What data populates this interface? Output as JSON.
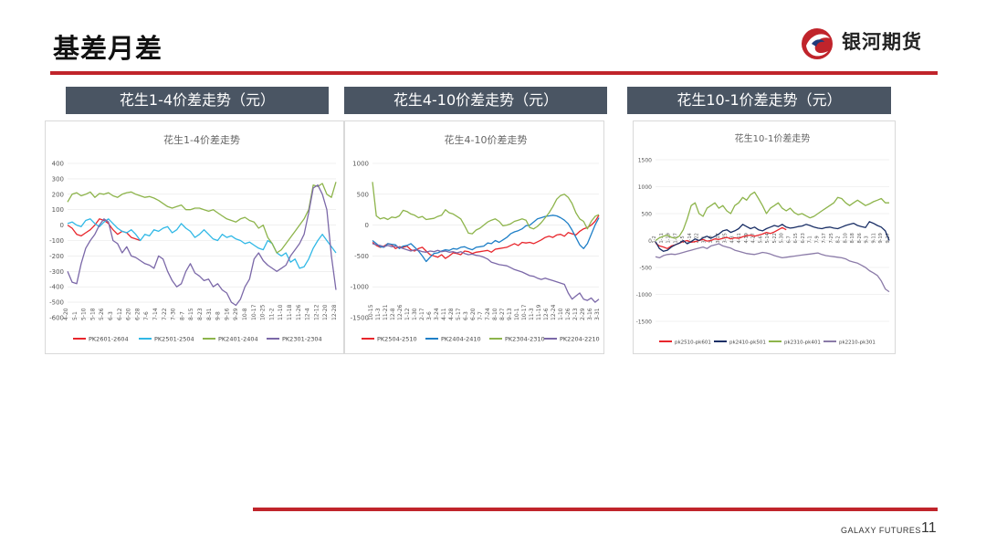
{
  "header": {
    "title": "基差月差",
    "brand_name": "银河期货"
  },
  "footer": {
    "brand": "GALAXY FUTURES",
    "page_number": "11"
  },
  "panels": [
    {
      "header": "花生1-4价差走势（元）"
    },
    {
      "header": "花生4-10价差走势（元）"
    },
    {
      "header": "花生10-1价差走势（元）"
    }
  ],
  "colors": {
    "accent_red": "#c0242b",
    "header_bg": "#4a5563"
  },
  "chart_data": [
    {
      "type": "line",
      "title": "花生1-4价差走势",
      "ylim": [
        -600,
        400
      ],
      "yticks": [
        400,
        300,
        200,
        100,
        0,
        -100,
        -200,
        -300,
        -400,
        -500,
        -600
      ],
      "x_tick_labels": [
        "4-20",
        "5-1",
        "5-10",
        "5-18",
        "5-26",
        "6-3",
        "6-12",
        "6-20",
        "6-28",
        "7-6",
        "7-14",
        "7-22",
        "7-30",
        "8-7",
        "8-15",
        "8-23",
        "8-31",
        "9-8",
        "9-16",
        "9-29",
        "10-8",
        "10-17",
        "10-25",
        "11-2",
        "11-10",
        "11-18",
        "11-26",
        "12-4",
        "12-12",
        "12-20",
        "12-28"
      ],
      "n": 60,
      "series": [
        {
          "name": "PK2601-2604",
          "color": "#e8262c",
          "range": [
            0,
            16
          ],
          "values": [
            0,
            -20,
            -60,
            -70,
            -50,
            -30,
            0,
            40,
            30,
            10,
            -30,
            -60,
            -40,
            -50,
            -80,
            -90,
            -100
          ]
        },
        {
          "name": "PK2501-2504",
          "color": "#30b8e6",
          "range": [
            0,
            59
          ],
          "values": [
            10,
            20,
            0,
            -10,
            30,
            40,
            10,
            -10,
            20,
            40,
            10,
            -20,
            -40,
            -50,
            -30,
            -60,
            -100,
            -60,
            -70,
            -30,
            -40,
            -20,
            -10,
            -50,
            -30,
            10,
            -20,
            -40,
            -80,
            -60,
            -30,
            -60,
            -90,
            -100,
            -60,
            -80,
            -70,
            -90,
            -100,
            -120,
            -110,
            -130,
            -150,
            -160,
            -100,
            -120,
            -180,
            -200,
            -180,
            -240,
            -220,
            -280,
            -270,
            -220,
            -150,
            -100,
            -60,
            -100,
            -140,
            -180
          ]
        },
        {
          "name": "PK2401-2404",
          "color": "#8db44b",
          "range": [
            0,
            59
          ],
          "values": [
            150,
            200,
            210,
            190,
            200,
            215,
            180,
            205,
            200,
            210,
            190,
            180,
            200,
            210,
            215,
            200,
            190,
            180,
            185,
            175,
            160,
            140,
            120,
            110,
            120,
            130,
            100,
            100,
            110,
            110,
            100,
            90,
            100,
            80,
            60,
            40,
            30,
            20,
            40,
            50,
            30,
            20,
            -20,
            0,
            -80,
            -120,
            -180,
            -160,
            -120,
            -80,
            -40,
            0,
            40,
            100,
            260,
            250,
            270,
            200,
            180,
            280
          ]
        },
        {
          "name": "PK2301-2304",
          "color": "#7b68a8",
          "range": [
            0,
            59
          ],
          "values": [
            -300,
            -370,
            -380,
            -250,
            -150,
            -100,
            -60,
            0,
            40,
            20,
            -100,
            -120,
            -180,
            -140,
            -200,
            -210,
            -230,
            -250,
            -260,
            -280,
            -200,
            -220,
            -300,
            -360,
            -400,
            -380,
            -300,
            -250,
            -310,
            -330,
            -360,
            -350,
            -400,
            -380,
            -420,
            -440,
            -500,
            -520,
            -480,
            -400,
            -350,
            -220,
            -180,
            -230,
            -260,
            -280,
            -300,
            -280,
            -260,
            -200,
            -160,
            -120,
            -60,
            80,
            240,
            260,
            200,
            100,
            -200,
            -420
          ]
        }
      ]
    },
    {
      "type": "line",
      "title": "花生4-10价差走势",
      "ylim": [
        -1500,
        1000
      ],
      "yticks": [
        1000,
        500,
        0,
        -500,
        -1000,
        -1500
      ],
      "x_tick_labels": [
        "10-15",
        "11-3",
        "11-21",
        "12-8",
        "12-26",
        "1-12",
        "1-30",
        "2-17",
        "3-6",
        "3-24",
        "4-11",
        "4-28",
        "5-17",
        "6-3",
        "6-20",
        "7-7",
        "7-24",
        "8-10",
        "8-27",
        "9-13",
        "10-1",
        "10-17",
        "11-3",
        "11-19",
        "12-6",
        "12-24",
        "1-10",
        "1-26",
        "2-13",
        "2-29",
        "3-16",
        "3-31"
      ],
      "n": 60,
      "series": [
        {
          "name": "PK2504-2510",
          "color": "#e8262c",
          "range": [
            0,
            59
          ],
          "values": [
            -280,
            -330,
            -360,
            -340,
            -300,
            -320,
            -380,
            -350,
            -360,
            -340,
            -400,
            -420,
            -380,
            -360,
            -420,
            -480,
            -500,
            -520,
            -480,
            -540,
            -500,
            -450,
            -460,
            -480,
            -420,
            -430,
            -460,
            -440,
            -430,
            -420,
            -410,
            -440,
            -390,
            -380,
            -370,
            -360,
            -330,
            -300,
            -330,
            -280,
            -290,
            -280,
            -300,
            -270,
            -240,
            -200,
            -180,
            -200,
            -160,
            -150,
            -180,
            -120,
            -140,
            -160,
            -100,
            -60,
            -40,
            0,
            60,
            160
          ]
        },
        {
          "name": "PK2404-2410",
          "color": "#1e7fc7",
          "range": [
            0,
            59
          ],
          "values": [
            -250,
            -300,
            -350,
            -360,
            -300,
            -310,
            -320,
            -380,
            -340,
            -330,
            -300,
            -360,
            -420,
            -500,
            -590,
            -520,
            -460,
            -450,
            -420,
            -400,
            -410,
            -380,
            -390,
            -360,
            -350,
            -380,
            -400,
            -360,
            -350,
            -340,
            -290,
            -300,
            -250,
            -280,
            -240,
            -200,
            -140,
            -110,
            -90,
            -60,
            -10,
            0,
            50,
            100,
            120,
            140,
            150,
            160,
            150,
            120,
            80,
            20,
            -80,
            -200,
            -320,
            -380,
            -300,
            -150,
            0,
            120
          ]
        },
        {
          "name": "PK2304-2310",
          "color": "#8db44b",
          "range": [
            0,
            59
          ],
          "values": [
            700,
            150,
            100,
            120,
            90,
            130,
            120,
            150,
            240,
            220,
            180,
            160,
            120,
            140,
            90,
            100,
            110,
            140,
            160,
            250,
            200,
            180,
            140,
            100,
            -10,
            -130,
            -140,
            -80,
            -50,
            0,
            50,
            80,
            100,
            60,
            -10,
            0,
            20,
            60,
            80,
            100,
            80,
            -40,
            -60,
            -20,
            40,
            120,
            200,
            300,
            420,
            480,
            500,
            450,
            350,
            200,
            100,
            60,
            -60,
            60,
            140,
            170
          ]
        },
        {
          "name": "PK2204-2210",
          "color": "#7b68a8",
          "range": [
            0,
            59
          ],
          "values": [
            -300,
            -320,
            -330,
            -350,
            -330,
            -350,
            -340,
            -360,
            -380,
            -400,
            -420,
            -400,
            -410,
            -430,
            -440,
            -420,
            -430,
            -410,
            -430,
            -420,
            -440,
            -430,
            -450,
            -430,
            -460,
            -480,
            -470,
            -490,
            -500,
            -520,
            -550,
            -600,
            -620,
            -640,
            -650,
            -660,
            -690,
            -720,
            -740,
            -760,
            -790,
            -820,
            -830,
            -860,
            -880,
            -860,
            -880,
            -900,
            -920,
            -940,
            -960,
            -1100,
            -1200,
            -1150,
            -1100,
            -1200,
            -1220,
            -1180,
            -1250,
            -1200
          ]
        }
      ]
    },
    {
      "type": "line",
      "title": "花生10-1价差走势",
      "ylim": [
        -1500,
        1500
      ],
      "yticks": [
        1500,
        1000,
        500,
        0,
        -500,
        -1000,
        -1500
      ],
      "x_tick_labels": [
        "1-2",
        "1-11",
        "1-19",
        "1-27",
        "2-5",
        "2-14",
        "2-22",
        "3-1",
        "3-9",
        "3-17",
        "3-25",
        "4-3",
        "4-11",
        "4-19",
        "4-27",
        "5-6",
        "5-14",
        "5-22",
        "5-30",
        "6-7",
        "6-15",
        "6-23",
        "7-1",
        "7-9",
        "7-17",
        "7-25",
        "8-2",
        "8-10",
        "8-18",
        "8-26",
        "9-3",
        "9-11",
        "9-19",
        "9-27"
      ],
      "n": 60,
      "series": [
        {
          "name": "pk2510-pk601",
          "color": "#e8262c",
          "range": [
            0,
            33
          ],
          "values": [
            -50,
            -100,
            -120,
            -150,
            -100,
            -80,
            -50,
            -20,
            0,
            -30,
            -20,
            0,
            20,
            -10,
            0,
            30,
            20,
            40,
            60,
            30,
            50,
            40,
            70,
            90,
            100,
            80,
            100,
            120,
            150,
            130,
            160,
            200,
            240,
            200
          ]
        },
        {
          "name": "pk2410-pk501",
          "color": "#1a2f66",
          "range": [
            0,
            59
          ],
          "values": [
            -20,
            -150,
            -200,
            -180,
            -120,
            -80,
            -50,
            0,
            -60,
            -20,
            30,
            0,
            50,
            80,
            40,
            80,
            120,
            180,
            200,
            150,
            180,
            220,
            300,
            260,
            220,
            250,
            200,
            180,
            220,
            250,
            280,
            260,
            300,
            250,
            230,
            240,
            260,
            270,
            300,
            280,
            250,
            230,
            220,
            240,
            250,
            230,
            220,
            250,
            280,
            300,
            320,
            280,
            260,
            240,
            350,
            320,
            280,
            250,
            180,
            0
          ]
        },
        {
          "name": "pk2310-pk401",
          "color": "#8db44b",
          "range": [
            0,
            59
          ],
          "values": [
            0,
            50,
            80,
            100,
            60,
            40,
            80,
            200,
            400,
            650,
            700,
            500,
            450,
            600,
            650,
            700,
            600,
            650,
            550,
            500,
            650,
            700,
            800,
            750,
            850,
            900,
            780,
            650,
            500,
            600,
            650,
            700,
            600,
            550,
            600,
            520,
            480,
            500,
            460,
            420,
            450,
            500,
            550,
            600,
            650,
            700,
            800,
            780,
            700,
            650,
            700,
            750,
            700,
            650,
            680,
            720,
            750,
            780,
            700,
            700
          ]
        },
        {
          "name": "pk2210-pk301",
          "color": "#8b7ba8",
          "range": [
            0,
            59
          ],
          "values": [
            -300,
            -320,
            -280,
            -260,
            -250,
            -260,
            -240,
            -220,
            -200,
            -180,
            -160,
            -140,
            -120,
            -150,
            -100,
            -80,
            -60,
            -100,
            -120,
            -140,
            -180,
            -200,
            -220,
            -240,
            -250,
            -260,
            -240,
            -220,
            -230,
            -250,
            -280,
            -300,
            -320,
            -310,
            -300,
            -290,
            -280,
            -270,
            -260,
            -250,
            -240,
            -230,
            -260,
            -280,
            -290,
            -300,
            -310,
            -320,
            -340,
            -380,
            -400,
            -420,
            -460,
            -500,
            -560,
            -600,
            -650,
            -750,
            -900,
            -950
          ]
        }
      ]
    }
  ]
}
